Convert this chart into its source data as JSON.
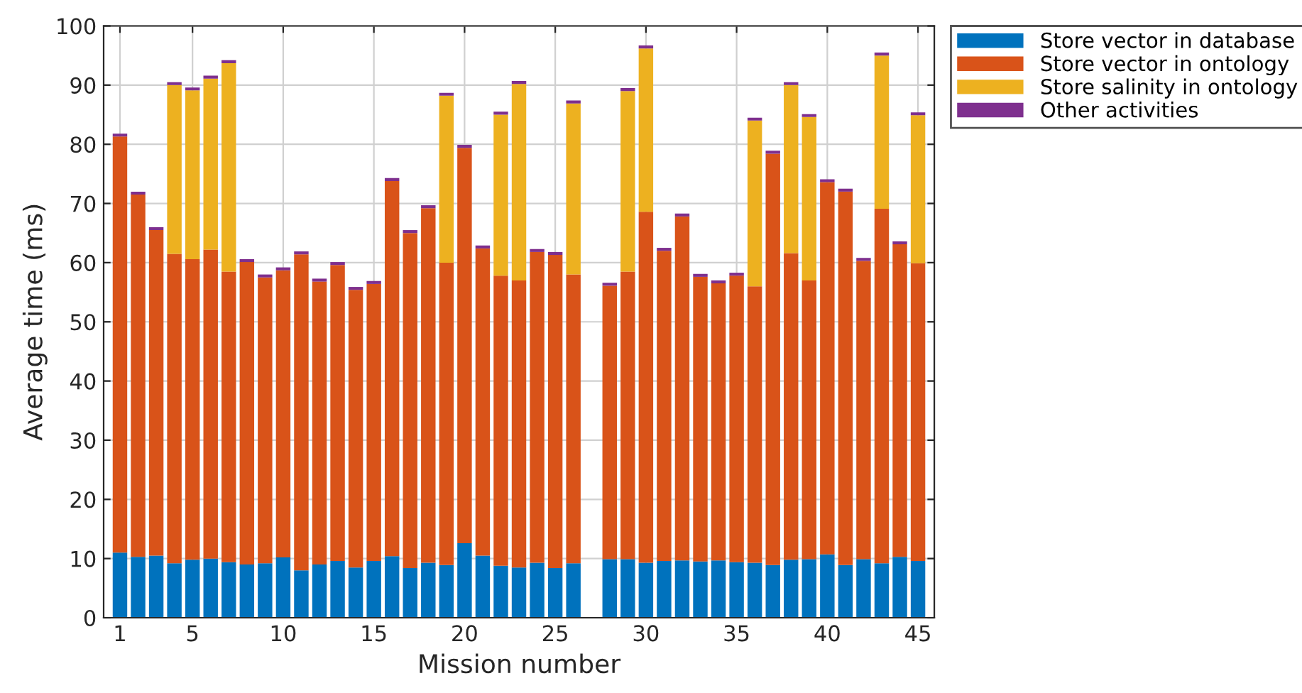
{
  "chart_data": {
    "type": "bar",
    "stacked": true,
    "xlabel": "Mission number",
    "ylabel": "Average time (ms)",
    "x": [
      1,
      2,
      3,
      4,
      5,
      6,
      7,
      8,
      9,
      10,
      11,
      12,
      13,
      14,
      15,
      16,
      17,
      18,
      19,
      20,
      21,
      22,
      23,
      24,
      25,
      26,
      28,
      29,
      30,
      31,
      32,
      33,
      34,
      35,
      36,
      37,
      38,
      39,
      40,
      41,
      42,
      43,
      44,
      45
    ],
    "series": [
      {
        "name": "Store vector in database",
        "color": "#0072bd",
        "values": [
          11,
          10.3,
          10.5,
          9.2,
          9.8,
          10,
          9.4,
          9,
          9.2,
          10.2,
          8,
          9,
          9.6,
          8.5,
          9.6,
          10.4,
          8.4,
          9.3,
          8.9,
          12.6,
          10.5,
          8.8,
          8.5,
          9.3,
          8.4,
          9.2,
          9.9,
          9.9,
          9.3,
          9.6,
          9.7,
          9.5,
          9.7,
          9.4,
          9.3,
          8.9,
          9.8,
          9.9,
          10.7,
          8.9,
          9.9,
          9.2,
          10.3,
          9.6
        ]
      },
      {
        "name": "Store vector in ontology",
        "color": "#d95319",
        "values": [
          70.3,
          61.2,
          55,
          52.3,
          50.8,
          52.2,
          49.1,
          51.1,
          48.3,
          48.5,
          53.4,
          47.8,
          50,
          46.9,
          46.8,
          63.4,
          56.6,
          59.9,
          51.1,
          66.8,
          51.9,
          49,
          48.5,
          52.5,
          52.9,
          48.8,
          46.2,
          48.6,
          59.3,
          52.4,
          58.1,
          48.1,
          46.8,
          48.4,
          46.7,
          69.5,
          51.8,
          47.1,
          62.9,
          63.1,
          50.4,
          59.9,
          52.8,
          50.3
        ]
      },
      {
        "name": "Store salinity in ontology",
        "color": "#edb120",
        "values": [
          0,
          0,
          0,
          28.5,
          28.5,
          28.9,
          35.2,
          0,
          0,
          0,
          0,
          0,
          0,
          0,
          0,
          0,
          0,
          0,
          28.2,
          0,
          0,
          27.2,
          33.2,
          0,
          0,
          28.9,
          0,
          30.5,
          27.6,
          0,
          0,
          0,
          0,
          0,
          28,
          0,
          28.4,
          27.6,
          0,
          0,
          0,
          25.9,
          0,
          25
        ]
      },
      {
        "name": "Other activities",
        "color": "#7e2f8e",
        "values": [
          0.5,
          0.5,
          0.5,
          0.5,
          0.5,
          0.5,
          0.5,
          0.5,
          0.5,
          0.5,
          0.5,
          0.5,
          0.5,
          0.5,
          0.5,
          0.5,
          0.5,
          0.5,
          0.5,
          0.5,
          0.5,
          0.5,
          0.5,
          0.5,
          0.5,
          0.5,
          0.5,
          0.5,
          0.5,
          0.5,
          0.5,
          0.5,
          0.5,
          0.5,
          0.5,
          0.5,
          0.5,
          0.5,
          0.5,
          0.5,
          0.5,
          0.5,
          0.5,
          0.5
        ]
      }
    ],
    "xlim": [
      0.1,
      45.9
    ],
    "xticks": [
      1,
      5,
      10,
      15,
      20,
      25,
      30,
      35,
      40,
      45
    ],
    "ylim": [
      0,
      100
    ],
    "yticks": [
      0,
      10,
      20,
      30,
      40,
      50,
      60,
      70,
      80,
      90,
      100
    ],
    "grid": true,
    "legend": "top right"
  }
}
